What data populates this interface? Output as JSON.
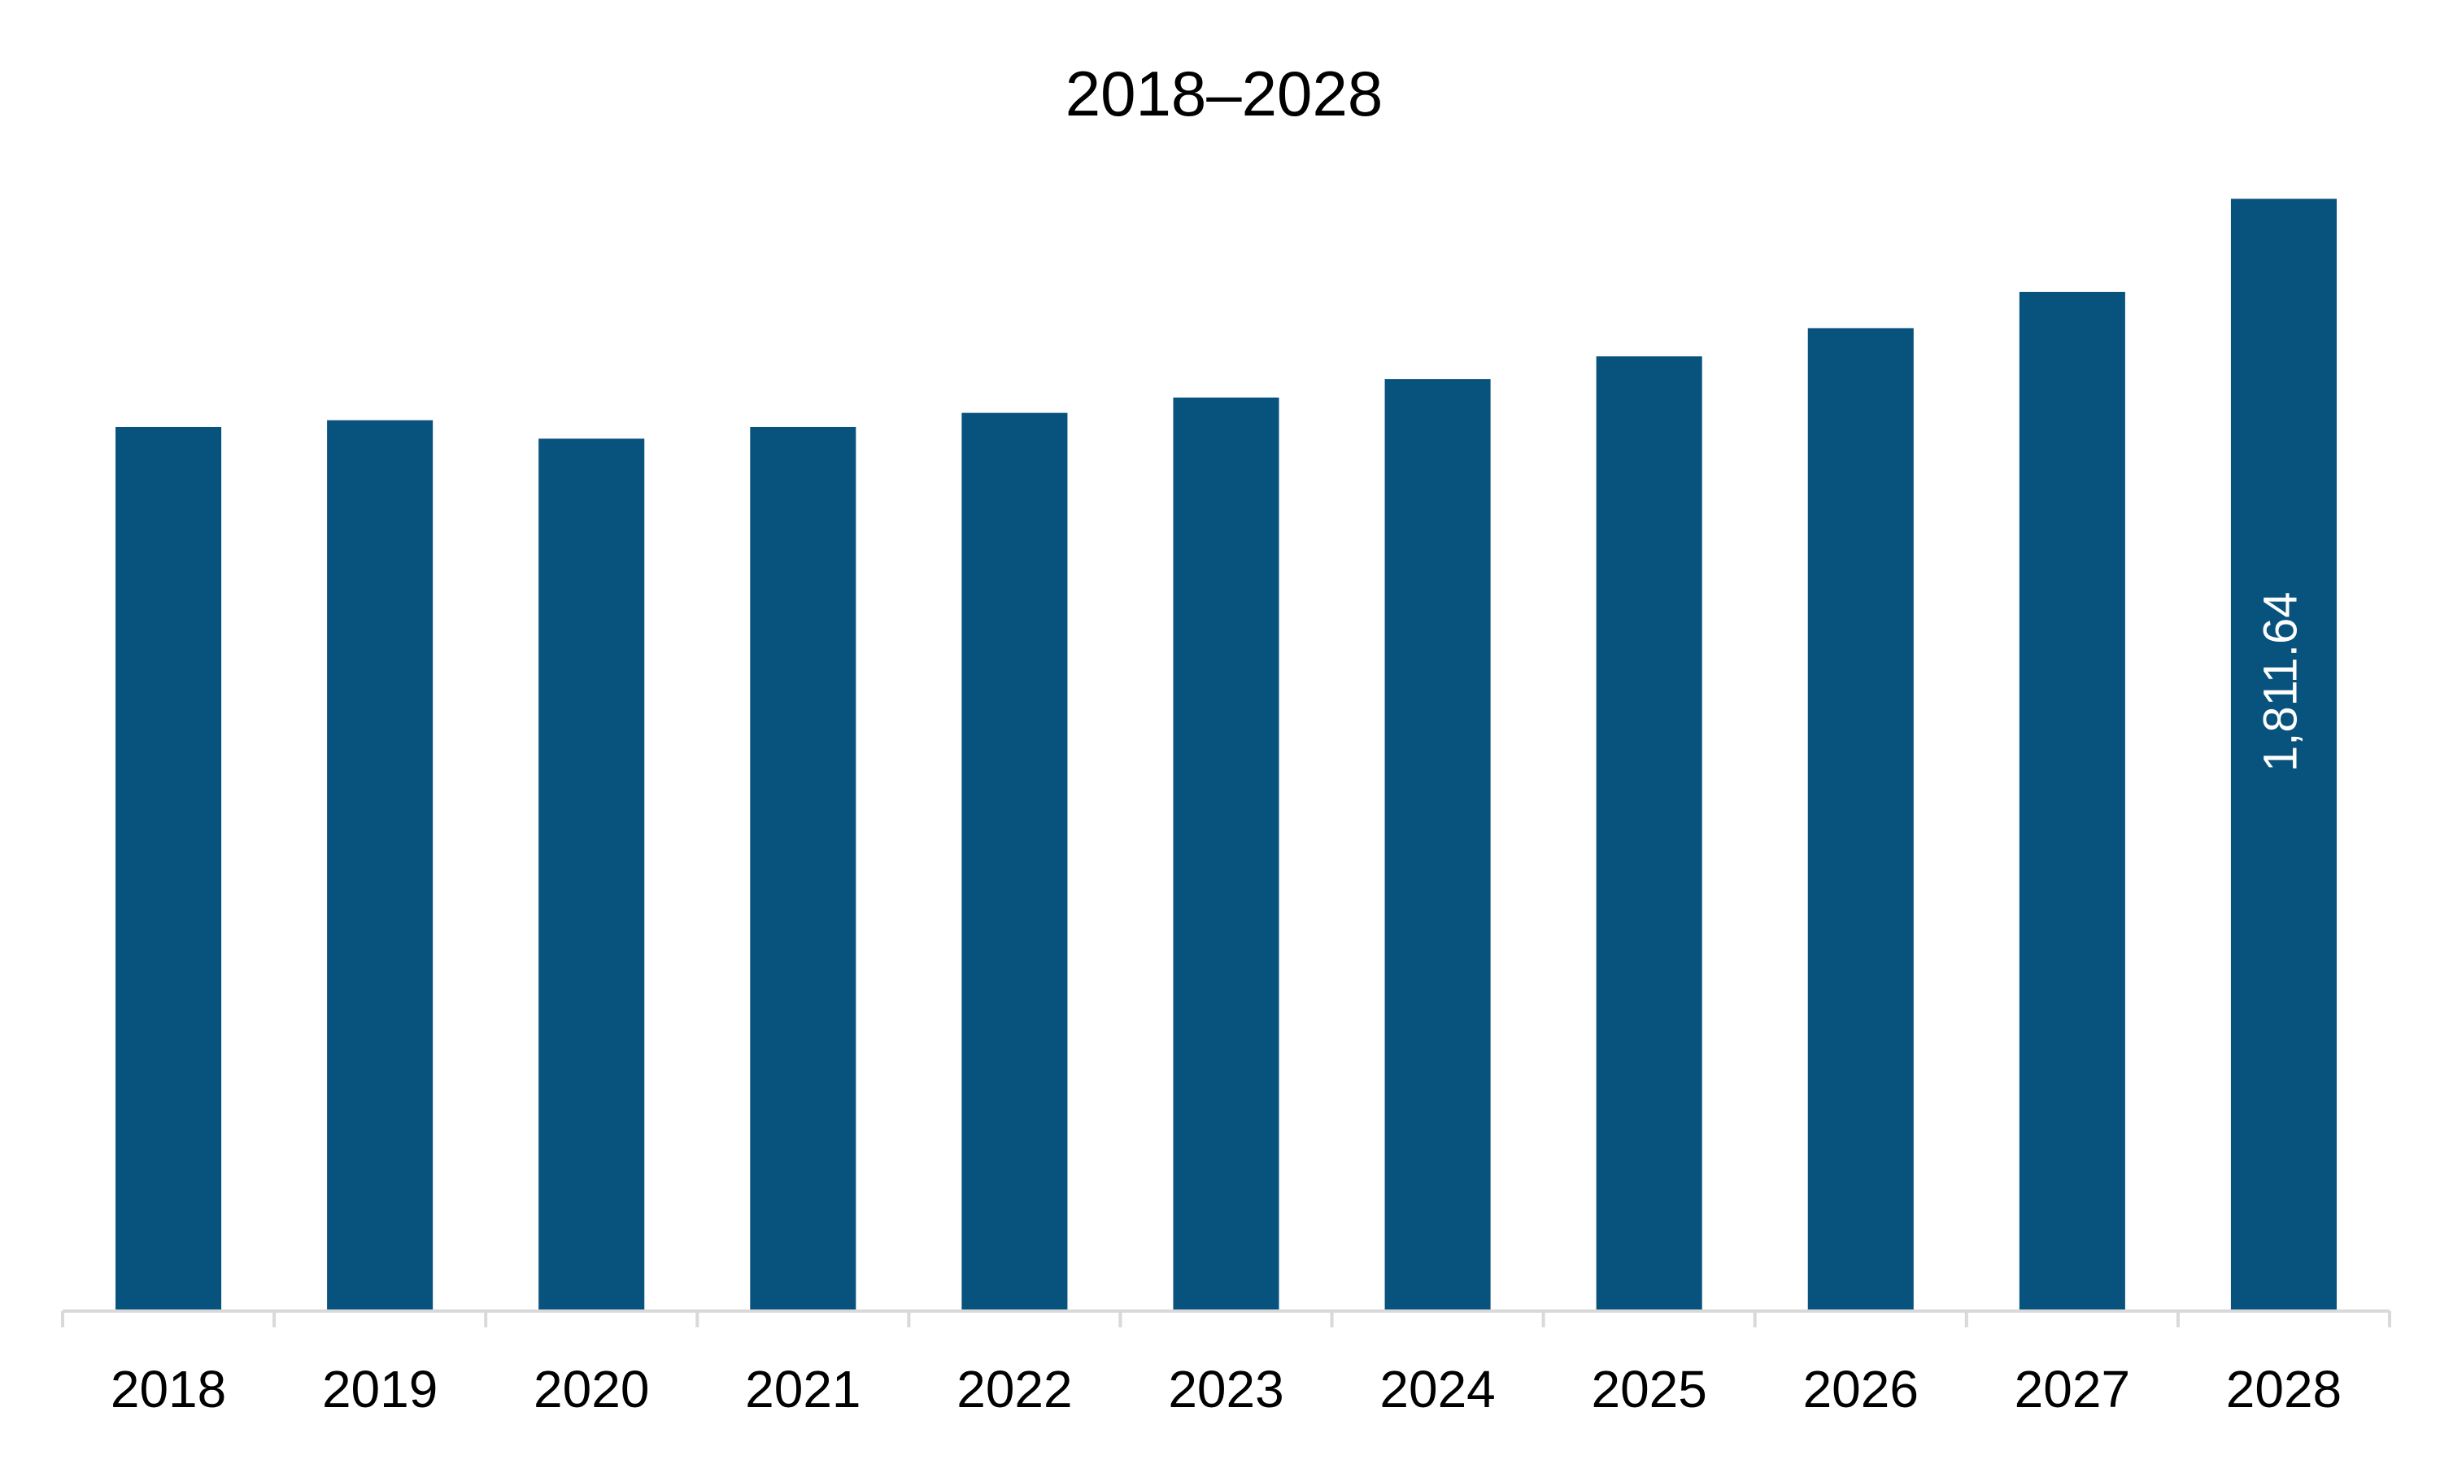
{
  "chart_data": {
    "type": "bar",
    "title": "2018–2028",
    "xlabel": "",
    "ylabel": "",
    "categories": [
      "2018",
      "2019",
      "2020",
      "2021",
      "2022",
      "2023",
      "2024",
      "2025",
      "2026",
      "2027",
      "2028"
    ],
    "values": [
      1440,
      1451,
      1421,
      1440,
      1463,
      1488,
      1518,
      1555,
      1601,
      1660,
      1811.64
    ],
    "data_labels": {
      "10": "1,811.64"
    },
    "ylim": [
      0,
      1950
    ],
    "grid": false,
    "legend": "none",
    "colors": {
      "bar": "#08527e",
      "axis": "#d9d9d9",
      "text": "#000000",
      "data_label": "#ffffff"
    }
  }
}
